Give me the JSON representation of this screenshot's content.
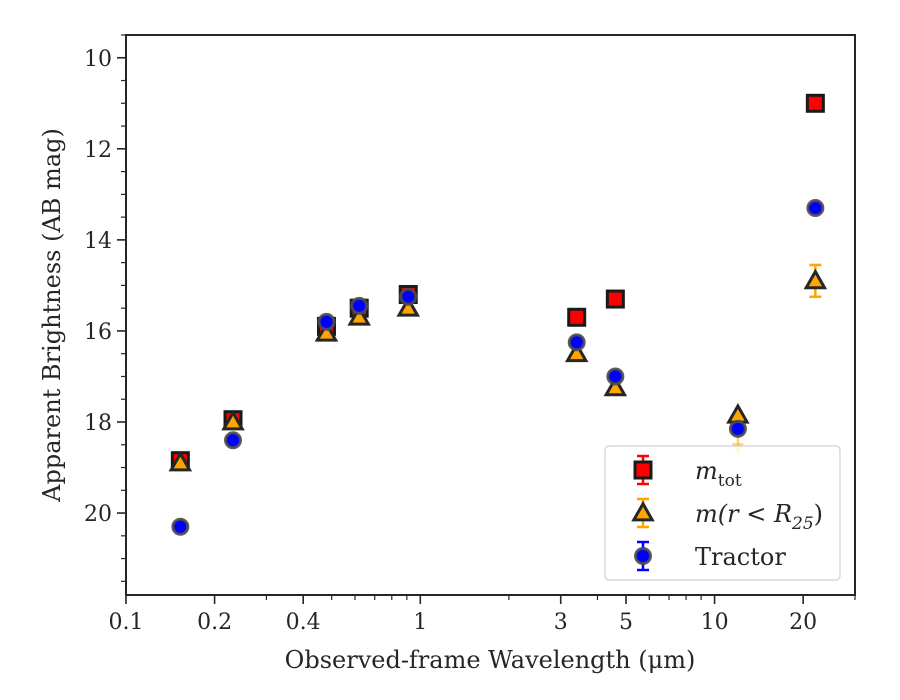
{
  "chart_data": {
    "type": "scatter",
    "xscale": "log",
    "yaxis_inverted": true,
    "xlabel": "Observed-frame Wavelength (μm)",
    "ylabel": "Apparent Brightness (AB mag)",
    "xlim": [
      0.1,
      30
    ],
    "ylim": [
      21.8,
      9.5
    ],
    "x_ticks": [
      {
        "value": 0.1,
        "label": "0.1"
      },
      {
        "value": 0.2,
        "label": "0.2"
      },
      {
        "value": 0.4,
        "label": "0.4"
      },
      {
        "value": 1,
        "label": "1"
      },
      {
        "value": 3,
        "label": "3"
      },
      {
        "value": 5,
        "label": "5"
      },
      {
        "value": 10,
        "label": "10"
      },
      {
        "value": 20,
        "label": "20"
      }
    ],
    "y_ticks": [
      {
        "value": 10,
        "label": "10"
      },
      {
        "value": 12,
        "label": "12"
      },
      {
        "value": 14,
        "label": "14"
      },
      {
        "value": 16,
        "label": "16"
      },
      {
        "value": 18,
        "label": "18"
      },
      {
        "value": 20,
        "label": "20"
      }
    ],
    "grid": false,
    "legend_position": "bottom-right",
    "series": [
      {
        "name": "m_tot",
        "label_main": "m",
        "label_sub": "tot",
        "marker": "square",
        "color": "#ff0000",
        "edge_color": "#1a1a1a",
        "error_color": "#ff0000",
        "points": [
          {
            "x": 0.153,
            "y": 18.85,
            "err": 0.05
          },
          {
            "x": 0.231,
            "y": 17.95,
            "err": 0.05
          },
          {
            "x": 0.48,
            "y": 15.9,
            "err": 0.05
          },
          {
            "x": 0.62,
            "y": 15.5,
            "err": 0.05
          },
          {
            "x": 0.91,
            "y": 15.2,
            "err": 0.05
          },
          {
            "x": 3.4,
            "y": 15.7,
            "err": 0.05
          },
          {
            "x": 4.6,
            "y": 15.3,
            "err": 0.05
          },
          {
            "x": 22.0,
            "y": 11.0,
            "err": 0.05
          }
        ]
      },
      {
        "name": "m(r < R_25)",
        "label_main": "m(r < R",
        "label_sub": "25",
        "label_end": ")",
        "marker": "triangle",
        "color": "#ffa500",
        "edge_color": "#262626",
        "error_color": "#ffa500",
        "points": [
          {
            "x": 0.153,
            "y": 18.9,
            "err": 0.05
          },
          {
            "x": 0.231,
            "y": 18.0,
            "err": 0.05
          },
          {
            "x": 0.48,
            "y": 16.05,
            "err": 0.05
          },
          {
            "x": 0.62,
            "y": 15.7,
            "err": 0.05
          },
          {
            "x": 0.91,
            "y": 15.5,
            "err": 0.05
          },
          {
            "x": 3.4,
            "y": 16.5,
            "err": 0.05
          },
          {
            "x": 4.6,
            "y": 17.25,
            "err": 0.05
          },
          {
            "x": 12.0,
            "y": 17.85,
            "err": 0.05,
            "upper_limit": true
          },
          {
            "x": 22.0,
            "y": 14.9,
            "err": 0.35
          }
        ]
      },
      {
        "name": "Tractor",
        "label_main": "Tractor",
        "marker": "circle",
        "color": "#0000ff",
        "edge_color": "#4d4d4d",
        "error_color": "#0000ff",
        "points": [
          {
            "x": 0.153,
            "y": 20.3,
            "err": 0.05
          },
          {
            "x": 0.231,
            "y": 18.4,
            "err": 0.05
          },
          {
            "x": 0.48,
            "y": 15.8,
            "err": 0.05
          },
          {
            "x": 0.62,
            "y": 15.45,
            "err": 0.05
          },
          {
            "x": 0.91,
            "y": 15.25,
            "err": 0.05
          },
          {
            "x": 3.4,
            "y": 16.25,
            "err": 0.05
          },
          {
            "x": 4.6,
            "y": 17.0,
            "err": 0.05
          },
          {
            "x": 12.0,
            "y": 18.15,
            "err": 0.1
          },
          {
            "x": 22.0,
            "y": 13.3,
            "err": 0.05
          }
        ]
      }
    ]
  }
}
